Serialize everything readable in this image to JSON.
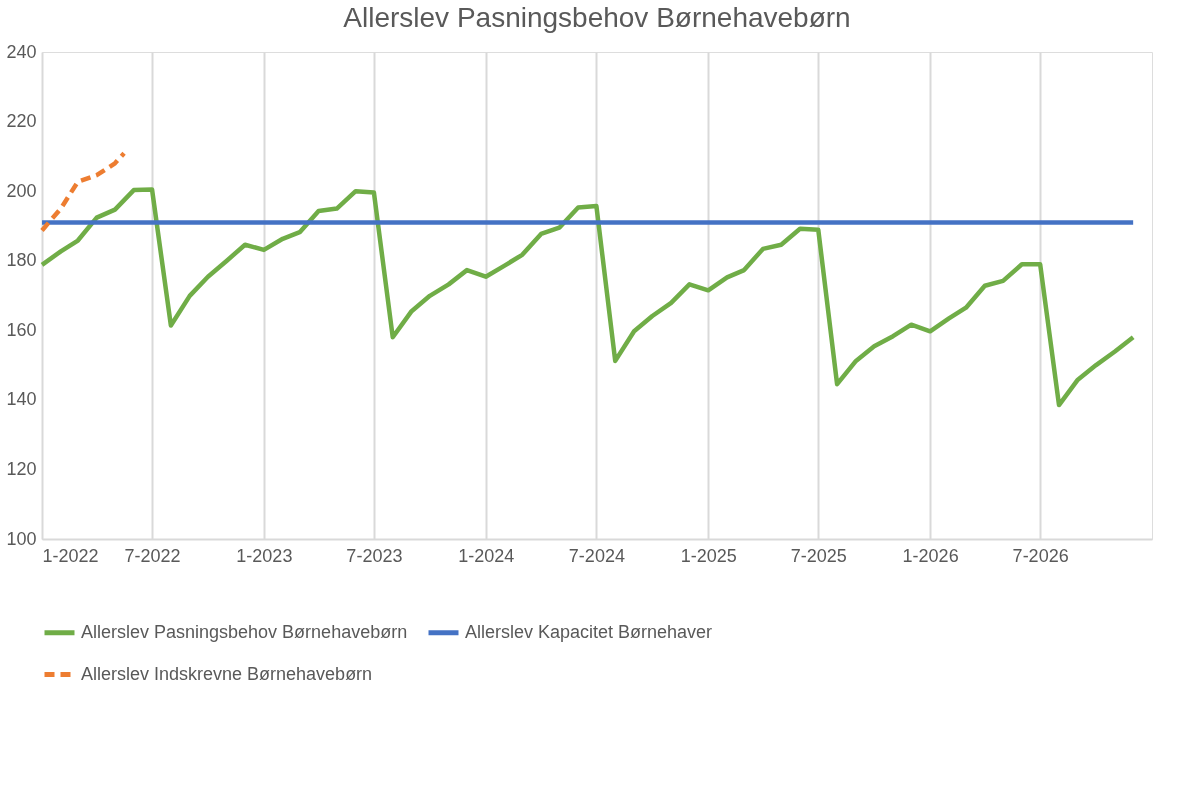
{
  "chart_data": {
    "type": "line",
    "title": "Allerslev Pasningsbehov  Børnehavebørn",
    "x": [
      "2022-01",
      "2022-02",
      "2022-03",
      "2022-04",
      "2022-05",
      "2022-06",
      "2022-07",
      "2022-08",
      "2022-09",
      "2022-10",
      "2022-11",
      "2022-12",
      "2023-01",
      "2023-02",
      "2023-03",
      "2023-04",
      "2023-05",
      "2023-06",
      "2023-07",
      "2023-08",
      "2023-09",
      "2023-10",
      "2023-11",
      "2023-12",
      "2024-01",
      "2024-02",
      "2024-03",
      "2024-04",
      "2024-05",
      "2024-06",
      "2024-07",
      "2024-08",
      "2024-09",
      "2024-10",
      "2024-11",
      "2024-12",
      "2025-01",
      "2025-02",
      "2025-03",
      "2025-04",
      "2025-05",
      "2025-06",
      "2025-07",
      "2025-08",
      "2025-09",
      "2025-10",
      "2025-11",
      "2025-12",
      "2026-01",
      "2026-02",
      "2026-03",
      "2026-04",
      "2026-05",
      "2026-06",
      "2026-07",
      "2026-08",
      "2026-09",
      "2026-10",
      "2026-11",
      "2026-12"
    ],
    "xlim": [
      "2022-01",
      "2027-01"
    ],
    "xticks": [
      {
        "value": "2022-01",
        "label": "1-2022"
      },
      {
        "value": "2022-07",
        "label": "7-2022"
      },
      {
        "value": "2023-01",
        "label": "1-2023"
      },
      {
        "value": "2023-07",
        "label": "7-2023"
      },
      {
        "value": "2024-01",
        "label": "1-2024"
      },
      {
        "value": "2024-07",
        "label": "7-2024"
      },
      {
        "value": "2025-01",
        "label": "1-2025"
      },
      {
        "value": "2025-07",
        "label": "7-2025"
      },
      {
        "value": "2026-01",
        "label": "1-2026"
      },
      {
        "value": "2026-07",
        "label": "7-2026"
      }
    ],
    "ylim": [
      100,
      240
    ],
    "yticks": [
      100,
      120,
      140,
      160,
      180,
      200,
      220,
      240
    ],
    "grid": "x",
    "legend": "bottom",
    "series": [
      {
        "name": "Allerslev Pasningsbehov Børnehavebørn",
        "color": "#70ad47",
        "values": [
          178.8,
          182.7,
          185.8,
          192.4,
          194.7,
          200.3,
          200.5,
          161.4,
          169.9,
          175.4,
          180.0,
          184.6,
          183.1,
          186.3,
          188.2,
          194.3,
          195.0,
          200.0,
          199.6,
          158.0,
          165.5,
          169.9,
          173.2,
          177.3,
          175.4,
          178.6,
          181.7,
          187.7,
          189.5,
          195.3,
          195.7,
          151.2,
          159.7,
          164.1,
          167.9,
          173.2,
          171.5,
          175.2,
          177.3,
          183.4,
          184.6,
          189.2,
          188.9,
          144.5,
          151.2,
          155.4,
          158.3,
          161.6,
          159.7,
          163.4,
          166.5,
          172.8,
          174.2,
          179.0,
          179.0,
          138.5,
          145.8,
          150.0,
          153.9,
          158.0
        ]
      },
      {
        "name": "Allerslev Kapacitet Børnehaver",
        "color": "#4472c4",
        "x": [
          "2022-01",
          "2026-12"
        ],
        "values": [
          191,
          191
        ]
      },
      {
        "name": "Allerslev Indskrevne Børnehavebørn",
        "color": "#ed7d31",
        "line_style": "dashed",
        "x": [
          "2022-01",
          "2022-02",
          "2022-03",
          "2022-04",
          "2022-05",
          "2022-05-16"
        ],
        "values": [
          188.7,
          195.0,
          202.7,
          204.6,
          208.0,
          210.9
        ]
      }
    ]
  }
}
